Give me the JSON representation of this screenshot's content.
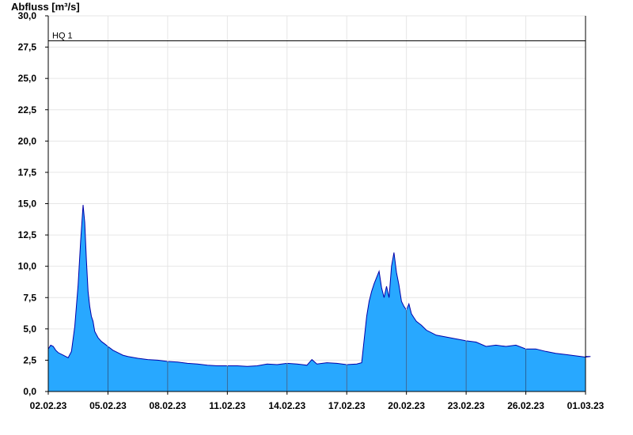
{
  "chart_data": {
    "type": "area",
    "ylabel": "Abfluss [m³/s]",
    "xlabel": "",
    "title": "",
    "ylim": [
      0,
      30
    ],
    "yticks": [
      "0,0",
      "2,5",
      "5,0",
      "7,5",
      "10,0",
      "12,5",
      "15,0",
      "17,5",
      "20,0",
      "22,5",
      "25,0",
      "27,5",
      "30,0"
    ],
    "xlim": [
      "2023-02-02",
      "2023-03-01"
    ],
    "xticks": [
      "02.02.23",
      "05.02.23",
      "08.02.23",
      "11.02.23",
      "14.02.23",
      "17.02.23",
      "20.02.23",
      "23.02.23",
      "26.02.23",
      "01.03.23"
    ],
    "grid": true,
    "fill_color": "#28a8ff",
    "line_color": "#0000aa",
    "reference_line": {
      "label": "HQ 1",
      "value": 28.0
    },
    "series": [
      {
        "x": [
          "2023-02-02 00:00",
          "2023-02-02 03:00",
          "2023-02-02 06:00",
          "2023-02-02 09:00",
          "2023-02-02 12:00",
          "2023-02-02 18:00",
          "2023-02-03 00:00",
          "2023-02-03 04:00",
          "2023-02-03 08:00",
          "2023-02-03 12:00",
          "2023-02-03 15:00",
          "2023-02-03 18:00",
          "2023-02-03 20:00",
          "2023-02-03 22:00",
          "2023-02-04 00:00",
          "2023-02-04 02:00",
          "2023-02-04 04:00",
          "2023-02-04 06:00",
          "2023-02-04 08:00",
          "2023-02-04 12:00",
          "2023-02-04 16:00",
          "2023-02-04 20:00",
          "2023-02-05 00:00",
          "2023-02-05 06:00",
          "2023-02-05 12:00",
          "2023-02-05 18:00",
          "2023-02-06 00:00",
          "2023-02-06 12:00",
          "2023-02-07 00:00",
          "2023-02-07 12:00",
          "2023-02-08 00:00",
          "2023-02-08 12:00",
          "2023-02-09 00:00",
          "2023-02-09 12:00",
          "2023-02-10 00:00",
          "2023-02-10 12:00",
          "2023-02-11 00:00",
          "2023-02-11 12:00",
          "2023-02-12 00:00",
          "2023-02-12 12:00",
          "2023-02-13 00:00",
          "2023-02-13 12:00",
          "2023-02-14 00:00",
          "2023-02-14 12:00",
          "2023-02-15 00:00",
          "2023-02-15 06:00",
          "2023-02-15 12:00",
          "2023-02-16 00:00",
          "2023-02-16 12:00",
          "2023-02-17 00:00",
          "2023-02-17 12:00",
          "2023-02-17 18:00",
          "2023-02-18 00:00",
          "2023-02-18 03:00",
          "2023-02-18 06:00",
          "2023-02-18 09:00",
          "2023-02-18 12:00",
          "2023-02-18 15:00",
          "2023-02-18 18:00",
          "2023-02-18 21:00",
          "2023-02-19 00:00",
          "2023-02-19 03:00",
          "2023-02-19 06:00",
          "2023-02-19 09:00",
          "2023-02-19 12:00",
          "2023-02-19 15:00",
          "2023-02-19 18:00",
          "2023-02-19 21:00",
          "2023-02-20 00:00",
          "2023-02-20 03:00",
          "2023-02-20 06:00",
          "2023-02-20 09:00",
          "2023-02-20 12:00",
          "2023-02-20 18:00",
          "2023-02-21 00:00",
          "2023-02-21 12:00",
          "2023-02-22 00:00",
          "2023-02-22 12:00",
          "2023-02-23 00:00",
          "2023-02-23 12:00",
          "2023-02-24 00:00",
          "2023-02-24 12:00",
          "2023-02-25 00:00",
          "2023-02-25 12:00",
          "2023-02-26 00:00",
          "2023-02-26 12:00",
          "2023-02-27 00:00",
          "2023-02-27 12:00",
          "2023-02-28 00:00",
          "2023-02-28 12:00",
          "2023-03-01 00:00",
          "2023-03-01 06:00"
        ],
        "values": [
          3.4,
          3.7,
          3.6,
          3.3,
          3.1,
          2.9,
          2.7,
          3.2,
          5.2,
          8.5,
          12.0,
          14.9,
          13.5,
          10.5,
          8.0,
          6.8,
          6.0,
          5.6,
          4.8,
          4.3,
          4.0,
          3.8,
          3.6,
          3.3,
          3.1,
          2.9,
          2.8,
          2.65,
          2.55,
          2.5,
          2.4,
          2.35,
          2.25,
          2.2,
          2.1,
          2.05,
          2.05,
          2.05,
          2.0,
          2.05,
          2.2,
          2.15,
          2.25,
          2.2,
          2.1,
          2.55,
          2.2,
          2.3,
          2.25,
          2.15,
          2.2,
          2.3,
          6.0,
          7.2,
          8.0,
          8.6,
          9.1,
          9.6,
          8.3,
          7.5,
          8.4,
          7.5,
          10.0,
          11.1,
          9.5,
          8.5,
          7.2,
          6.8,
          6.5,
          7.0,
          6.2,
          5.9,
          5.6,
          5.3,
          4.9,
          4.5,
          4.35,
          4.2,
          4.05,
          3.95,
          3.6,
          3.7,
          3.6,
          3.7,
          3.4,
          3.4,
          3.2,
          3.05,
          2.95,
          2.85,
          2.75,
          2.8
        ]
      }
    ]
  }
}
